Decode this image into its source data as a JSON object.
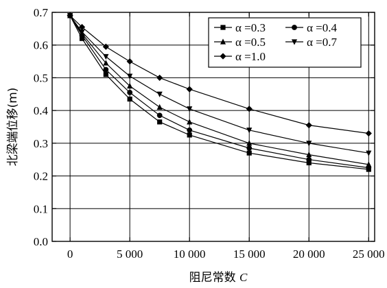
{
  "chart_data": {
    "type": "line",
    "xlabel_text": "阻尼常数",
    "xlabel_var": "C",
    "ylabel": "北梁端位移(m)",
    "xlim": [
      -1500,
      25500
    ],
    "ylim": [
      0,
      0.7
    ],
    "xticks": [
      0,
      5000,
      10000,
      15000,
      20000,
      25000
    ],
    "xtick_labels": [
      "0",
      "5 000",
      "10 000",
      "15 000",
      "20 000",
      "25 000"
    ],
    "yticks": [
      0,
      0.1,
      0.2,
      0.3,
      0.4,
      0.5,
      0.6,
      0.7
    ],
    "ytick_labels": [
      "0.0",
      "0.1",
      "0.2",
      "0.3",
      "0.4",
      "0.5",
      "0.6",
      "0.7"
    ],
    "grid": true,
    "legend_position": "top-right",
    "x": [
      0,
      1000,
      3000,
      5000,
      7500,
      10000,
      15000,
      20000,
      25000
    ],
    "series": [
      {
        "name": "α =0.3",
        "marker": "square",
        "values": [
          0.69,
          0.62,
          0.51,
          0.435,
          0.365,
          0.325,
          0.27,
          0.24,
          0.22
        ]
      },
      {
        "name": "α =0.4",
        "marker": "circle",
        "values": [
          0.69,
          0.63,
          0.525,
          0.455,
          0.385,
          0.34,
          0.285,
          0.25,
          0.225
        ]
      },
      {
        "name": "α =0.5",
        "marker": "triangle-up",
        "values": [
          0.69,
          0.635,
          0.545,
          0.475,
          0.41,
          0.365,
          0.3,
          0.265,
          0.235
        ]
      },
      {
        "name": "α =0.7",
        "marker": "triangle-down",
        "values": [
          0.69,
          0.64,
          0.565,
          0.505,
          0.45,
          0.405,
          0.34,
          0.3,
          0.27
        ]
      },
      {
        "name": "α =1.0",
        "marker": "diamond",
        "values": [
          0.69,
          0.655,
          0.595,
          0.55,
          0.5,
          0.465,
          0.405,
          0.355,
          0.33
        ]
      }
    ],
    "colors": {
      "line": "#000000",
      "grid": "#000000",
      "background": "#ffffff"
    }
  }
}
